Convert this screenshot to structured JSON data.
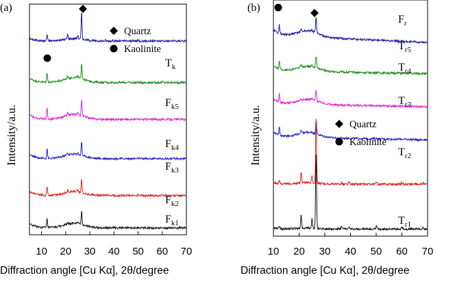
{
  "figure": {
    "panels": [
      {
        "tag": "(a)",
        "ylabel": "Intensity/a.u.",
        "xlabel": "Diffraction angle [Cu Kα], 2θ/degree",
        "xticks": [
          "10",
          "20",
          "30",
          "40",
          "50",
          "60",
          "70"
        ],
        "legend": [
          {
            "symbol": "diamond",
            "label": "Quartz"
          },
          {
            "symbol": "circle",
            "label": "Kaolinite"
          }
        ],
        "trace_labels": [
          {
            "main": "T",
            "sub": "k"
          },
          {
            "main": "F",
            "sub": "k5"
          },
          {
            "main": "F",
            "sub": "k4"
          },
          {
            "main": "F",
            "sub": "k3"
          },
          {
            "main": "F",
            "sub": "k2"
          },
          {
            "main": "F",
            "sub": "k1"
          }
        ]
      },
      {
        "tag": "(b)",
        "ylabel": "Intensity/a.u.",
        "xlabel": "Diffraction angle [Cu Kα], 2θ/degree",
        "xticks": [
          "10",
          "20",
          "30",
          "40",
          "50",
          "60",
          "70"
        ],
        "legend": [
          {
            "symbol": "diamond",
            "label": "Quartz"
          },
          {
            "symbol": "circle",
            "label": "Kaolinite"
          }
        ],
        "trace_labels": [
          {
            "main": "F",
            "sub": "r"
          },
          {
            "main": "T",
            "sub": "r5"
          },
          {
            "main": "T",
            "sub": "r4"
          },
          {
            "main": "T",
            "sub": "r3"
          },
          {
            "main": "T",
            "sub": "r2"
          },
          {
            "main": "T",
            "sub": "r1"
          }
        ]
      }
    ]
  },
  "chart_data": [
    {
      "type": "line",
      "panel": "(a)",
      "xlabel": "Diffraction angle [Cu Kα], 2θ/degree",
      "ylabel": "Intensity/a.u.",
      "xlim": [
        5,
        70
      ],
      "ylim": [
        0,
        100
      ],
      "y_scale": "arbitrary units, traces vertically offset",
      "grid": false,
      "colors": [
        "#1a1a9c",
        "#1a8c1a",
        "#e020e0",
        "#2020cc",
        "#e01e1e",
        "#111111"
      ],
      "peaks_common": [
        [
          12.3,
          0.3
        ],
        [
          20.8,
          0.18
        ],
        [
          25.0,
          0.12
        ],
        [
          26.6,
          1.0
        ],
        [
          36.5,
          0.03
        ],
        [
          39.4,
          0.03
        ],
        [
          50.1,
          0.04
        ],
        [
          60.0,
          0.03
        ],
        [
          68.2,
          0.02
        ]
      ],
      "annotations": [
        {
          "symbol": "circle",
          "label": "Kaolinite",
          "x": 12.3
        },
        {
          "symbol": "diamond",
          "label": "Quartz",
          "x": 26.6
        }
      ],
      "series": [
        {
          "name": "Tk",
          "label_main": "T",
          "label_sub": "k",
          "offset": 84,
          "peak_scale": 12,
          "kaolinite_scale": 0.8,
          "hump_scale": 0.5,
          "baseline_slope": 0.0
        },
        {
          "name": "Fk5",
          "label_main": "F",
          "label_sub": "k5",
          "offset": 66,
          "peak_scale": 7,
          "kaolinite_scale": 1.2,
          "hump_scale": 1.0,
          "baseline_slope": 0.0
        },
        {
          "name": "Fk4",
          "label_main": "F",
          "label_sub": "k4",
          "offset": 50,
          "peak_scale": 7,
          "kaolinite_scale": 1.3,
          "hump_scale": 1.0,
          "baseline_slope": 0.0
        },
        {
          "name": "Fk3",
          "label_main": "F",
          "label_sub": "k3",
          "offset": 33,
          "peak_scale": 6,
          "kaolinite_scale": 1.2,
          "hump_scale": 0.9,
          "baseline_slope": 0.0
        },
        {
          "name": "Fk2",
          "label_main": "F",
          "label_sub": "k2",
          "offset": 17,
          "peak_scale": 6,
          "kaolinite_scale": 1.1,
          "hump_scale": 0.8,
          "baseline_slope": 0.0
        },
        {
          "name": "Fk1",
          "label_main": "F",
          "label_sub": "k1",
          "offset": 3,
          "peak_scale": 6,
          "kaolinite_scale": 1.0,
          "hump_scale": 0.9,
          "baseline_slope": 0.0
        }
      ]
    },
    {
      "type": "line",
      "panel": "(b)",
      "xlabel": "Diffraction angle [Cu Kα], 2θ/degree",
      "ylabel": "Intensity/a.u.",
      "xlim": [
        10,
        70
      ],
      "ylim": [
        0,
        100
      ],
      "y_scale": "arbitrary units, traces vertically offset",
      "grid": false,
      "colors": [
        "#1a1a9c",
        "#1a8c1a",
        "#e020e0",
        "#2020cc",
        "#e01e1e",
        "#111111"
      ],
      "peaks_common": [
        [
          12.3,
          0.3
        ],
        [
          20.8,
          0.18
        ],
        [
          25.0,
          0.12
        ],
        [
          26.6,
          1.0
        ],
        [
          36.5,
          0.03
        ],
        [
          39.4,
          0.03
        ],
        [
          50.1,
          0.04
        ],
        [
          60.0,
          0.03
        ],
        [
          68.2,
          0.02
        ]
      ],
      "annotations": [
        {
          "symbol": "circle",
          "label": "Kaolinite",
          "x": 12.3
        },
        {
          "symbol": "diamond",
          "label": "Quartz",
          "x": 26.6
        }
      ],
      "series": [
        {
          "name": "Fr",
          "label_main": "F",
          "label_sub": "r",
          "offset": 85,
          "peak_scale": 7,
          "kaolinite_scale": 1.0,
          "hump_scale": 1.2,
          "baseline_slope": -0.05
        },
        {
          "name": "Tr5",
          "label_main": "T",
          "label_sub": "r5",
          "offset": 70,
          "peak_scale": 5,
          "kaolinite_scale": 1.0,
          "hump_scale": 1.0,
          "baseline_slope": -0.02
        },
        {
          "name": "Tr4",
          "label_main": "T",
          "label_sub": "r4",
          "offset": 56,
          "peak_scale": 5,
          "kaolinite_scale": 1.0,
          "hump_scale": 1.0,
          "baseline_slope": -0.02
        },
        {
          "name": "Tr3",
          "label_main": "T",
          "label_sub": "r3",
          "offset": 42,
          "peak_scale": 6,
          "kaolinite_scale": 1.0,
          "hump_scale": 1.0,
          "baseline_slope": -0.02
        },
        {
          "name": "Tr2",
          "label_main": "T",
          "label_sub": "r2",
          "offset": 22,
          "peak_scale": 28,
          "kaolinite_scale": 0.3,
          "hump_scale": 0.3,
          "baseline_slope": 0.0
        },
        {
          "name": "Tr1",
          "label_main": "T",
          "label_sub": "r1",
          "offset": 3,
          "peak_scale": 32,
          "kaolinite_scale": 0.2,
          "hump_scale": 0.2,
          "baseline_slope": 0.0
        }
      ]
    }
  ]
}
